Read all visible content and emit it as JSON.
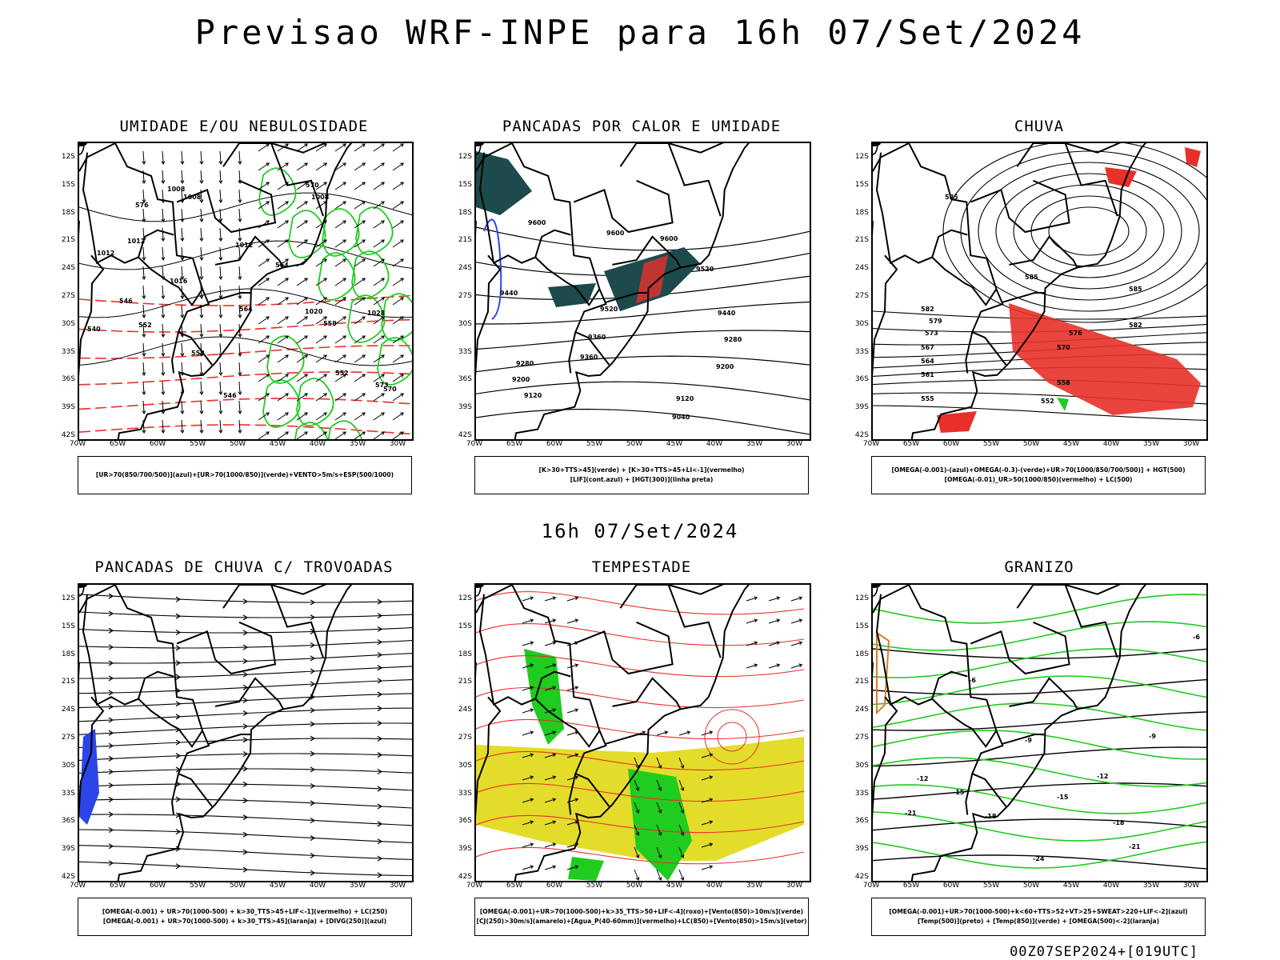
{
  "title": "Previsao WRF-INPE  para 16h 07/Set/2024",
  "mid_title": "16h 07/Set/2024",
  "footer": "00Z07SEP2024+[019UTC]",
  "lat_ticks": [
    "12S",
    "15S",
    "18S",
    "21S",
    "24S",
    "27S",
    "30S",
    "33S",
    "36S",
    "39S",
    "42S"
  ],
  "lon_ticks": [
    "70W",
    "65W",
    "60W",
    "55W",
    "50W",
    "45W",
    "40W",
    "35W",
    "30W"
  ],
  "colors": {
    "red": "#e8302a",
    "green": "#1fcc1f",
    "blue": "#2b45e8",
    "teal": "#1d4a4c",
    "yellow": "#e4dc2a",
    "orange": "#e07a2a",
    "black": "#000000"
  },
  "panels": [
    {
      "id": "umidade",
      "title": "UMIDADE E/OU NEBULOSIDADE",
      "legend": [
        "[UR>70(850/700/500)](azul)+[UR>70(1000/850)](verde)+VENTO>5m/s+ESP(500/1000)"
      ],
      "contour_labels": [
        "1008",
        "1008",
        "1008",
        "1012",
        "1012",
        "1012",
        "1016",
        "1020",
        "1028",
        "570",
        "573",
        "576",
        "570",
        "564",
        "558",
        "552",
        "546",
        "540",
        "564",
        "558",
        "552",
        "546"
      ]
    },
    {
      "id": "pancadas_calor",
      "title": "PANCADAS POR CALOR E UMIDADE",
      "legend": [
        "[K>30+TTS>45](verde) + [K>30+TTS>45+LI<-1](vermelho)",
        "[LIF](cont.azul) + [HGT(300)](linha preta)"
      ],
      "contour_labels": [
        "9600",
        "9600",
        "9600",
        "9520",
        "9520",
        "9440",
        "9440",
        "9360",
        "9360",
        "9280",
        "9280",
        "9200",
        "9200",
        "9120",
        "9120",
        "9040"
      ]
    },
    {
      "id": "chuva",
      "title": "CHUVA",
      "legend": [
        "[OMEGA(-0.001)-(azul)+OMEGA(-0.3)-(verde)+UR>70(1000/850/700/500)] + HGT(500)",
        "[OMEGA(-0.01)_UR>50(1000/850)(vermelho) + LC(500)"
      ],
      "contour_labels": [
        "585",
        "585",
        "585",
        "582",
        "582",
        "579",
        "576",
        "573",
        "570",
        "567",
        "564",
        "561",
        "558",
        "555",
        "552"
      ]
    },
    {
      "id": "pancadas_trovoadas",
      "title": "PANCADAS DE CHUVA C/ TROVOADAS",
      "legend": [
        "[OMEGA(-0.001) + UR>70(1000-500) + k>30_TTS>45+LIF<-1](vermelho) + LC(250)",
        "[OMEGA(-0.001) + UR>70(1000-500) + k>30_TTS>45](laranja) + [DIVG(250)](azul)"
      ],
      "contour_labels": []
    },
    {
      "id": "tempestade",
      "title": "TEMPESTADE",
      "legend": [
        "[OMEGA(-0.001)+UR>70(1000-500)+k>35_TTS>50+LIF<-4](roxo)+[Vento(850)>10m/s](verde)",
        "[CJ(250)>30m/s](amarelo)+[Agua_P(40-60mm)](vermelho)+LC(850)+[Vento(850)>15m/s](vetor)"
      ],
      "contour_labels": []
    },
    {
      "id": "granizo",
      "title": "GRANIZO",
      "legend": [
        "[OMEGA(-0.001)+UR>70(1000-500)+k<60+TTS>52+VT>25+SWEAT>220+LIF<-2](azul)",
        "[Temp(500)](preto) + [Temp(850)](verde) + [OMEGA(500)<-2](laranja)"
      ],
      "contour_labels": [
        "-6",
        "-6",
        "-9",
        "-9",
        "-12",
        "-12",
        "-15",
        "-15",
        "-18",
        "-18",
        "-21",
        "-21",
        "-24"
      ]
    }
  ]
}
